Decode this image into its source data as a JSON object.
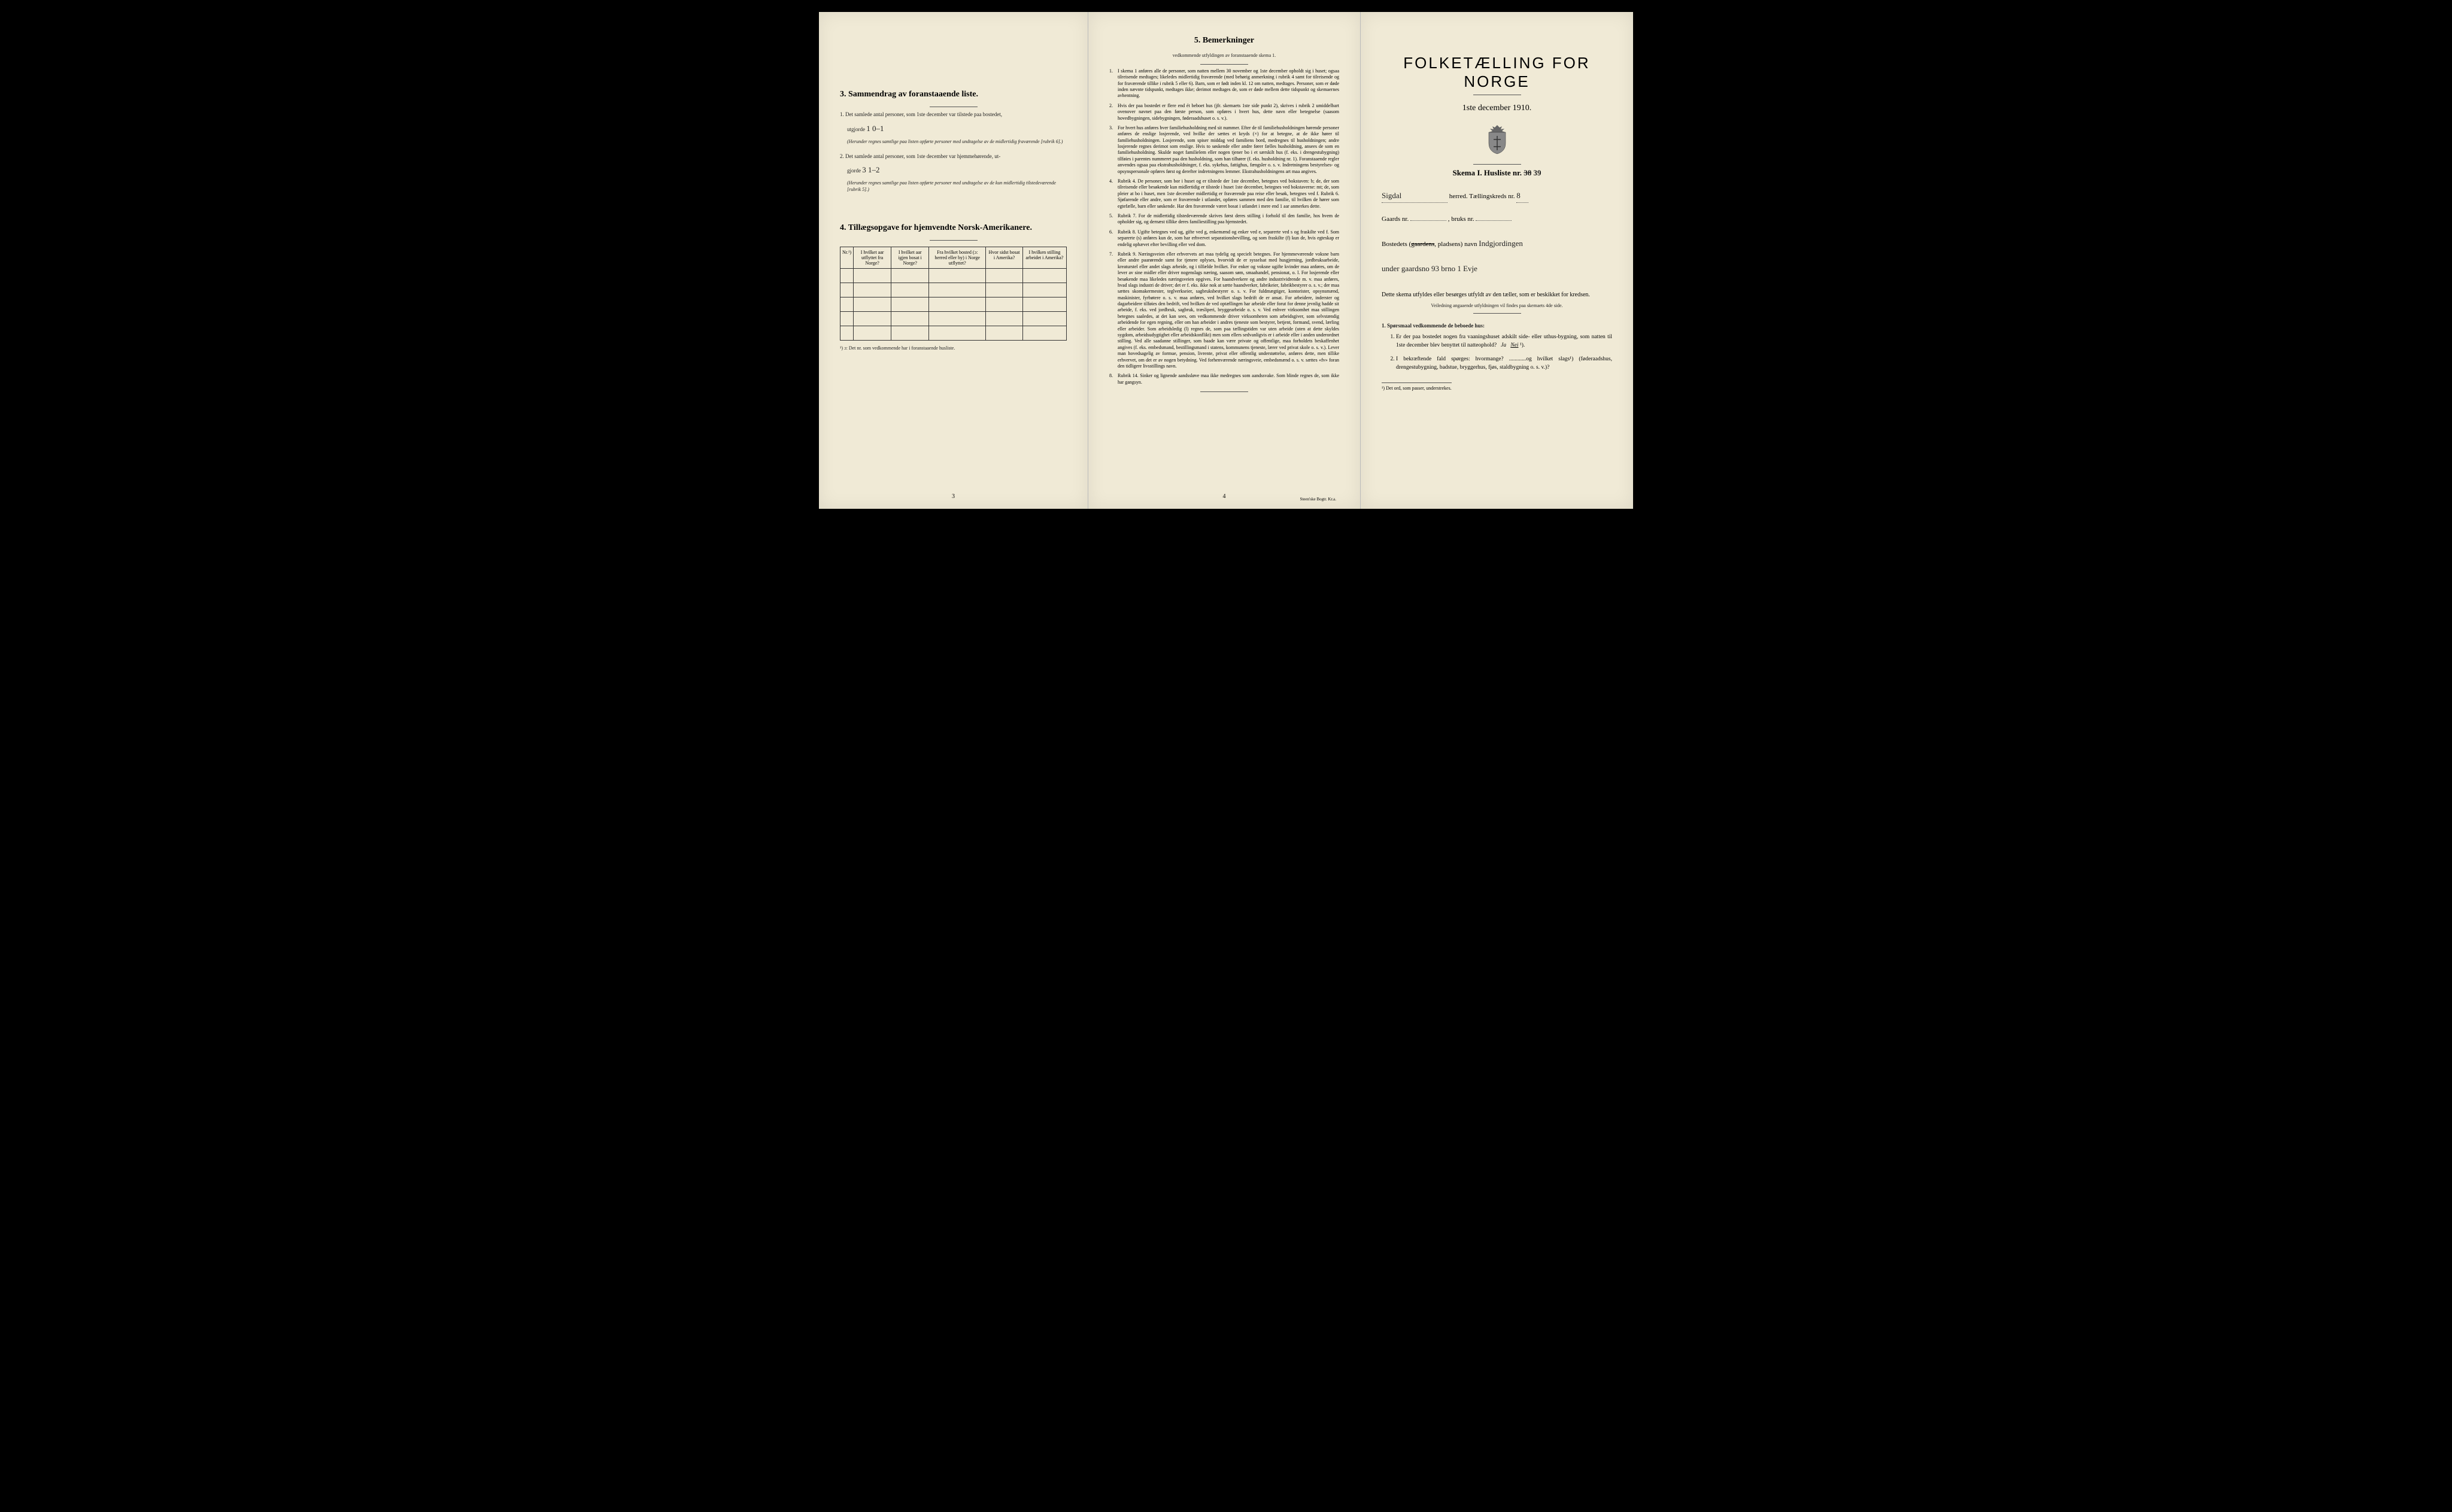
{
  "colors": {
    "paper": "#f0ead6",
    "ink": "#222222",
    "border": "#333333",
    "background": "#000000"
  },
  "left": {
    "section3_title": "3.  Sammendrag av foranstaaende liste.",
    "item1_prefix": "1.  Det samlede antal personer, som 1ste december var tilstede paa bostedet,",
    "item1_utgjorde": "utgjorde",
    "item1_hand": "1       0–1",
    "item1_note": "(Herunder regnes samtlige paa listen opførte personer med undtagelse av de midlertidig fraværende [rubrik 6].)",
    "item2_prefix": "2.  Det samlede antal personer, som 1ste december var hjemmehørende, ut-",
    "item2_gjorde": "gjorde",
    "item2_hand": "3      1–2",
    "item2_note": "(Herunder regnes samtlige paa listen opførte personer med undtagelse av de kun midlertidig tilstedeværende [rubrik 5].)",
    "section4_title": "4.  Tillægsopgave for hjemvendte Norsk-Amerikanere.",
    "table": {
      "headers": [
        "Nr.¹)",
        "I hvilket aar utflyttet fra Norge?",
        "I hvilket aar igjen bosat i Norge?",
        "Fra hvilket bosted (ɔ: herred eller by) i Norge utflyttet?",
        "Hvor sidst bosat i Amerika?",
        "I hvilken stilling arbeidet i Amerika?"
      ],
      "rows": 5,
      "cols": 6
    },
    "table_footnote": "¹) ɔ: Det nr. som vedkommende har i foranstaaende husliste.",
    "page_num": "3"
  },
  "center": {
    "title": "5.  Bemerkninger",
    "subtitle": "vedkommende utfyldingen av foranstaaende skema 1.",
    "items": [
      "I skema 1 anføres alle de personer, som natten mellem 30 november og 1ste december opholdt sig i huset; ogsaa tilreisende medtages; likeledes midlertidig fraværende (med behørig anmerkning i rubrik 4 samt for tilreisende og for fraværende tillike i rubrik 5 eller 6). Barn, som er født inden kl. 12 om natten, medtages. Personer, som er døde inden nævnte tidspunkt, medtages ikke; derimot medtages de, som er døde mellem dette tidspunkt og skemaernes avhentning.",
      "Hvis der paa bostedet er flere end ét beboet hus (jfr. skemaets 1ste side punkt 2), skrives i rubrik 2 umiddelbart ovenover navnet paa den første person, som opføres i hvert hus, dette navn eller betegnelse (saasom hovedbygningen, sidebygningen, føderaadshuset o. s. v.).",
      "For hvert hus anføres hver familiehusholdning med sit nummer. Efter de til familiehusholdningen hørende personer anføres de enslige losjerende, ved hvilke der sættes et kryds (×) for at betegne, at de ikke hører til familiehusholdningen. Losjerende, som spiser middag ved familiens bord, medregnes til husholdningen; andre losjerende regnes derimot som enslige. Hvis to søskende eller andre fører fælles husholdning, ansees de som en familiehusholdning. Skulde noget familielem eller nogen tjener bo i et særskilt hus (f. eks. i drengestu­bygning) tilføies i parentes nummeret paa den husholdning, som han tilhører (f. eks. husholdning nr. 1).  Foranstaaende regler anvendes ogsaa paa ekstrahusholdninger, f. eks. syke­hus, fattighus, fængsler o. s. v. Indretningens bestyrelses- og opsynspersonale opføres først og derefter indretningens lemmer. Ekstrahusholdningens art maa angives.",
      "Rubrik 4. De personer, som bor i huset og er tilstede der 1ste december, betegnes ved bokstaven: b; de, der som tilreisende eller besøkende kun midlertidig er tilstede i huset 1ste december, betegnes ved bokstaverne: mt; de, som pleier at bo i huset, men 1ste december midlertidig er fraværende paa reise eller besøk, betegnes ved f.  Rubrik 6. Sjøfarende eller andre, som er fraværende i utlandet, opføres sammen med den familie, til hvilken de hører som egtefælle, barn eller søskende.  Har den fraværende været bosat i utlandet i mere end 1 aar anmerkes dette.",
      "Rubrik 7. For de midlertidig tilstedeværende skrives først deres stilling i forhold til den familie, hos hvem de opholder sig, og dernæst tillike deres familiestilling paa hjemstedet.",
      "Rubrik 8. Ugifte betegnes ved ug, gifte ved g, enkemænd og enker ved e, separerte ved s og fraskilte ved f. Som separerte (s) anføres kun de, som har erhvervet separations­bevilling, og som fraskilte (f) kun de, hvis egteskap er endelig ophævet efter bevilling eller ved dom.",
      "Rubrik 9. Næringsveien eller erhvervets art maa tydelig og specielt betegnes.  For hjemmeværende voksne barn eller andre paarørende samt for tjenere oplyses, hvor­vidt de er sysselsat med husgjerning, jordbruksarbeide, kreaturstel eller andet slags arbeide, og i tilfælde hvilket. For enker og voksne ugifte kvinder maa anføres, om de lever av sine midler eller driver nogenslags næring, saasom søm, smaahandel, pensionat, o. l.  For losjerende eller besøkende maa likeledes næringsveien opgives.  For haandverkere og andre industrividrende m. v. maa anføres, hvad slags industri de driver; det er f. eks. ikke nok at sætte haandverker, fabrikeier, fabrikbestyrer o. s. v.; der maa sættes skomakermester, teglverkseier, sagbruksbestyrer o. s. v.  For fuldmægtiger, kontorister, opsynsmænd, maskinister, fyrbøtere o. s. v. maa anføres, ved hvilket slags bedrift de er ansat.  For arbeidere, inderster og dagarbeidere tilføies den bedrift, ved hvilken de ved op­tællingen har arbeide eller forut for denne jevnlig hadde sit arbeide, f. eks. ved jordbruk, sagbruk, træsliperi, bryggearbeide o. s. v.  Ved enhver virksomhet maa stillingen betegnes saaledes, at det kan sees, om ved­kommende driver virksomheten som arbeidsgiver, som selvstændig arbeidende for egen regning, eller om han arbeider i andres tjeneste som bestyrer, betjent, formand, svend, lærling eller arbeider.  Som arbeidsledig (l) regnes de, som paa tællingstiden var uten arbeide (uten at dette skyldes sygdom, arbeidsudygtighet eller arbeidskonflikt) men som ellers sedvanligvis er i arbeide eller i anden underordnet stilling.  Ved alle saadanne stillinger, som baade kan være private og offentlige, maa for­holdets beskaffenhet angives (f. eks. embedsmand, bestillingsmand i statens, kommunens tjeneste, lærer ved privat skole o. s. v.).  Lever man hovedsagelig av formue, pension, livrente, privat eller offentlig under­støttelse, anføres dette, men tillike erhvervet, om det er av nogen betydning.  Ved forhenværende næringsveie, embedsmænd o. s. v. sættes «fv» foran den tidligere livsstillings navn.",
      "Rubrik 14. Sinker og lignende aandssløve maa ikke medregnes som aandssvake.  Som blinde regnes de, som ikke har gangsyn."
    ],
    "page_num": "4",
    "printer": "Steen'ske Bogtr.  Kr.a."
  },
  "right": {
    "main_title": "FOLKETÆLLING FOR NORGE",
    "sub_title": "1ste december 1910.",
    "skema_label": "Skema I.  Husliste nr.",
    "husliste_nr_hand": "38 39",
    "herred_hand": "Sigdal",
    "herred_label": "herred.  Tællingskreds nr.",
    "kreds_nr": "8",
    "gaards_label": "Gaards nr.",
    "bruks_label": ", bruks nr.",
    "bosted_label": "Bostedets (gaardens, pladsens) navn",
    "bosted_hand1": "Indgjordingen",
    "bosted_hand2": "under gaardsno 93 brno 1 Evje",
    "instructions": "Dette skema utfyldes eller besørges utfyldt av den tæller, som er beskikket for kredsen.",
    "instructions2": "Veiledning angaaende utfyldningen vil findes paa skemaets 4de side.",
    "q_heading": "1. Spørsmaal vedkommende de beboede hus:",
    "q1": "Er der paa bostedet nogen fra vaaningshuset adskilt side- eller uthus-bygning, som natten til 1ste december blev benyttet til natteophold?   Ja   Nei ¹).",
    "q2": "I bekræftende fald spørges: hvormange? ............og hvilket slags¹) (føderaadshus, drengestubygning, badstue, bryggerhus, fjøs, stald­bygning o. s. v.)?",
    "footnote": "¹) Det ord, som passer, understrekes.",
    "gaardens_strike": "gaardens"
  }
}
